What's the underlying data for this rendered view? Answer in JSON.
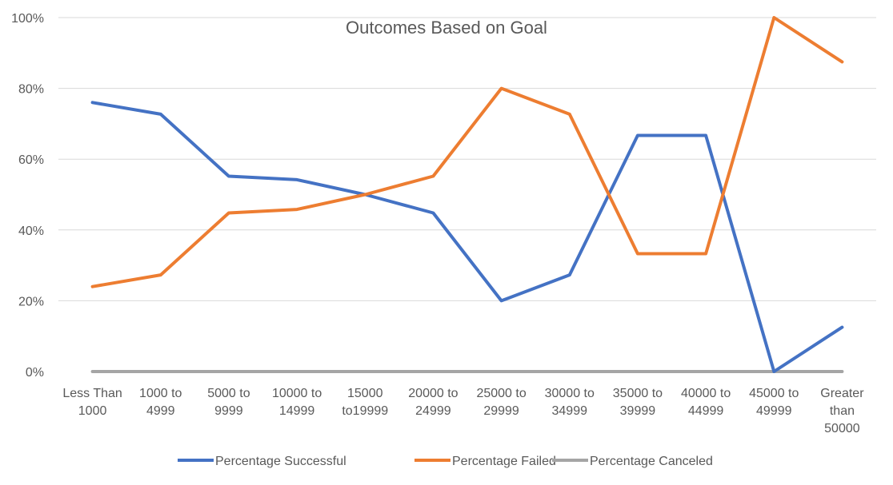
{
  "chart_data": {
    "type": "line",
    "title": "Outcomes Based on Goal",
    "xlabel": "",
    "ylabel": "",
    "ylim": [
      0,
      1
    ],
    "yticks": [
      "0%",
      "20%",
      "40%",
      "60%",
      "80%",
      "100%"
    ],
    "categories": [
      "Less Than 1000",
      "1000 to 4999",
      "5000 to 9999",
      "10000 to 14999",
      "15000 to19999",
      "20000 to 24999",
      "25000 to 29999",
      "30000 to 34999",
      "35000 to 39999",
      "40000 to 44999",
      "45000 to 49999",
      "Greater than 50000"
    ],
    "category_lines": [
      [
        "Less Than",
        "1000"
      ],
      [
        "1000 to",
        "4999"
      ],
      [
        "5000 to",
        "9999"
      ],
      [
        "10000 to",
        "14999"
      ],
      [
        "15000",
        "to19999"
      ],
      [
        "20000 to",
        "24999"
      ],
      [
        "25000 to",
        "29999"
      ],
      [
        "30000 to",
        "34999"
      ],
      [
        "35000 to",
        "39999"
      ],
      [
        "40000 to",
        "44999"
      ],
      [
        "45000 to",
        "49999"
      ],
      [
        "Greater",
        "than",
        "50000"
      ]
    ],
    "series": [
      {
        "name": "Percentage Successful",
        "color": "#4472c4",
        "values": [
          0.76,
          0.727,
          0.552,
          0.542,
          0.5,
          0.448,
          0.2,
          0.273,
          0.667,
          0.667,
          0.0,
          0.125
        ]
      },
      {
        "name": "Percentage Failed",
        "color": "#ed7d31",
        "values": [
          0.24,
          0.273,
          0.448,
          0.458,
          0.5,
          0.552,
          0.8,
          0.727,
          0.333,
          0.333,
          1.0,
          0.875
        ]
      },
      {
        "name": "Percentage Canceled",
        "color": "#a5a5a5",
        "values": [
          0,
          0,
          0,
          0,
          0,
          0,
          0,
          0,
          0,
          0,
          0,
          0
        ]
      }
    ],
    "grid": true,
    "legend_position": "bottom"
  }
}
